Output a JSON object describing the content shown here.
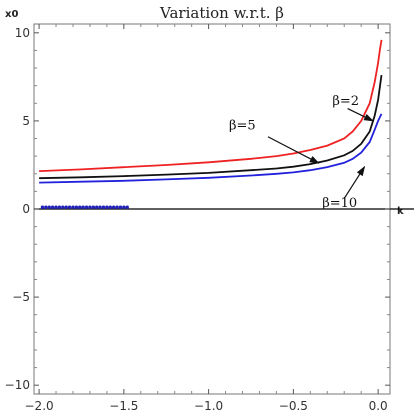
{
  "chart_data": {
    "type": "line",
    "title": "Variation w.r.t. β",
    "xlabel": "k",
    "ylabel": "x0",
    "xlim": [
      -2.03,
      0.07
    ],
    "ylim": [
      -10.5,
      10.5
    ],
    "x_ticks": [
      -2.0,
      -1.5,
      -1.0,
      -0.5,
      0.0
    ],
    "x_tick_labels": [
      "−2.0",
      "−1.5",
      "−1.0",
      "−0.5",
      "0.0"
    ],
    "y_ticks": [
      -10,
      -5,
      0,
      5,
      10
    ],
    "y_tick_labels": [
      "−10",
      "−5",
      "0",
      "5",
      "10"
    ],
    "grid": false,
    "series": [
      {
        "name": "β=2",
        "color": "#ee2222",
        "points": [
          [
            -2.0,
            2.15
          ],
          [
            -1.75,
            2.25
          ],
          [
            -1.5,
            2.37
          ],
          [
            -1.25,
            2.5
          ],
          [
            -1.0,
            2.65
          ],
          [
            -0.75,
            2.85
          ],
          [
            -0.6,
            3.0
          ],
          [
            -0.5,
            3.15
          ],
          [
            -0.4,
            3.35
          ],
          [
            -0.3,
            3.6
          ],
          [
            -0.2,
            4.0
          ],
          [
            -0.15,
            4.4
          ],
          [
            -0.1,
            5.0
          ],
          [
            -0.05,
            6.0
          ],
          [
            -0.02,
            7.2
          ],
          [
            0.0,
            8.3
          ],
          [
            0.01,
            9.0
          ],
          [
            0.02,
            9.6
          ]
        ]
      },
      {
        "name": "β=5",
        "color": "#111111",
        "points": [
          [
            -2.0,
            1.75
          ],
          [
            -1.75,
            1.8
          ],
          [
            -1.5,
            1.87
          ],
          [
            -1.25,
            1.95
          ],
          [
            -1.0,
            2.05
          ],
          [
            -0.75,
            2.2
          ],
          [
            -0.6,
            2.3
          ],
          [
            -0.5,
            2.4
          ],
          [
            -0.4,
            2.55
          ],
          [
            -0.3,
            2.75
          ],
          [
            -0.2,
            3.05
          ],
          [
            -0.15,
            3.3
          ],
          [
            -0.1,
            3.7
          ],
          [
            -0.05,
            4.4
          ],
          [
            -0.02,
            5.3
          ],
          [
            0.0,
            6.2
          ],
          [
            0.01,
            6.9
          ],
          [
            0.02,
            7.6
          ]
        ]
      },
      {
        "name": "β=10",
        "color": "#2222dd",
        "points": [
          [
            -2.0,
            1.5
          ],
          [
            -1.75,
            1.55
          ],
          [
            -1.5,
            1.6
          ],
          [
            -1.25,
            1.68
          ],
          [
            -1.0,
            1.77
          ],
          [
            -0.75,
            1.9
          ],
          [
            -0.6,
            2.0
          ],
          [
            -0.5,
            2.08
          ],
          [
            -0.4,
            2.2
          ],
          [
            -0.3,
            2.38
          ],
          [
            -0.2,
            2.62
          ],
          [
            -0.15,
            2.85
          ],
          [
            -0.1,
            3.2
          ],
          [
            -0.05,
            3.8
          ],
          [
            -0.02,
            4.5
          ],
          [
            0.0,
            5.0
          ],
          [
            0.01,
            5.2
          ],
          [
            0.02,
            5.4
          ]
        ]
      }
    ],
    "marker_strip": {
      "color": "#2222bb",
      "y": 0.1,
      "x": [
        -1.98,
        -1.96,
        -1.94,
        -1.92,
        -1.9,
        -1.88,
        -1.86,
        -1.84,
        -1.82,
        -1.8,
        -1.78,
        -1.76,
        -1.74,
        -1.72,
        -1.7,
        -1.68,
        -1.66,
        -1.64,
        -1.62,
        -1.6,
        -1.58,
        -1.56,
        -1.54,
        -1.52,
        -1.5,
        -1.48
      ]
    },
    "annotations": [
      {
        "text": "β=2",
        "text_at": [
          -0.27,
          5.9
        ],
        "arrow_from": [
          -0.18,
          5.7
        ],
        "arrow_to": [
          -0.03,
          5.0
        ]
      },
      {
        "text": "β=5",
        "text_at": [
          -0.88,
          4.5
        ],
        "arrow_from": [
          -0.65,
          4.1
        ],
        "arrow_to": [
          -0.35,
          2.6
        ]
      },
      {
        "text": "β=10",
        "text_at": [
          -0.33,
          0.1
        ],
        "arrow_from": [
          -0.2,
          0.6
        ],
        "arrow_to": [
          -0.08,
          2.4
        ]
      }
    ]
  }
}
